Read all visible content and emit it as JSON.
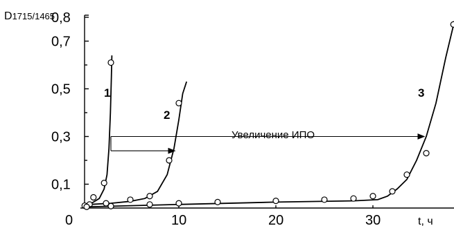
{
  "chart_data": {
    "type": "scatter",
    "ylabel_main": "D",
    "ylabel_sub": "1715/1465",
    "xlabel": "t, ч",
    "xlim": [
      0,
      38.5
    ],
    "ylim": [
      0,
      0.85
    ],
    "y_ticks": [
      {
        "value": 0.1,
        "label": "0,1"
      },
      {
        "value": 0.3,
        "label": "0,3"
      },
      {
        "value": 0.5,
        "label": "0,5"
      },
      {
        "value": 0.7,
        "label": "0,7"
      },
      {
        "value": 0.8,
        "label": "0,8"
      }
    ],
    "x_ticks": [
      {
        "value": 0,
        "label": "0"
      },
      {
        "value": 10,
        "label": "10"
      },
      {
        "value": 20,
        "label": "20"
      },
      {
        "value": 30,
        "label": "30"
      }
    ],
    "series": [
      {
        "name": "1",
        "points": [
          [
            0.3,
            0.01
          ],
          [
            1.2,
            0.045
          ],
          [
            2.3,
            0.105
          ],
          [
            3.0,
            0.61
          ]
        ],
        "curve": [
          [
            0.3,
            0.01
          ],
          [
            1.0,
            0.02
          ],
          [
            1.8,
            0.04
          ],
          [
            2.3,
            0.08
          ],
          [
            2.6,
            0.14
          ],
          [
            2.8,
            0.25
          ],
          [
            2.95,
            0.4
          ],
          [
            3.05,
            0.55
          ],
          [
            3.1,
            0.64
          ]
        ]
      },
      {
        "name": "2",
        "points": [
          [
            0.8,
            0.015
          ],
          [
            2.5,
            0.02
          ],
          [
            5.0,
            0.035
          ],
          [
            7.0,
            0.05
          ],
          [
            9.0,
            0.2
          ],
          [
            10.0,
            0.44
          ]
        ],
        "curve": [
          [
            0.8,
            0.015
          ],
          [
            3.0,
            0.02
          ],
          [
            5.0,
            0.028
          ],
          [
            6.5,
            0.04
          ],
          [
            7.8,
            0.07
          ],
          [
            8.8,
            0.14
          ],
          [
            9.5,
            0.25
          ],
          [
            10.0,
            0.37
          ],
          [
            10.4,
            0.48
          ],
          [
            10.8,
            0.53
          ]
        ]
      },
      {
        "name": "3",
        "points": [
          [
            0.5,
            0.005
          ],
          [
            3.0,
            0.008
          ],
          [
            7.0,
            0.015
          ],
          [
            10.0,
            0.02
          ],
          [
            14.0,
            0.025
          ],
          [
            20.0,
            0.03
          ],
          [
            25.0,
            0.035
          ],
          [
            28.0,
            0.04
          ],
          [
            30.0,
            0.05
          ],
          [
            32.0,
            0.07
          ],
          [
            33.5,
            0.14
          ],
          [
            35.5,
            0.23
          ],
          [
            38.3,
            0.77
          ]
        ],
        "curve": [
          [
            0.5,
            0.005
          ],
          [
            10.0,
            0.015
          ],
          [
            20.0,
            0.025
          ],
          [
            28.0,
            0.03
          ],
          [
            30.5,
            0.035
          ],
          [
            31.5,
            0.05
          ],
          [
            32.5,
            0.08
          ],
          [
            33.5,
            0.12
          ],
          [
            34.5,
            0.2
          ],
          [
            35.5,
            0.3
          ],
          [
            36.5,
            0.44
          ],
          [
            37.5,
            0.63
          ],
          [
            38.5,
            0.8
          ]
        ]
      }
    ],
    "annotation": {
      "text": "Увеличение ИПО",
      "arrows": [
        {
          "from": [
            3.0,
            0.3
          ],
          "to": [
            35.3,
            0.3
          ]
        },
        {
          "from": [
            3.0,
            0.24
          ],
          "to": [
            9.6,
            0.24
          ]
        }
      ]
    }
  }
}
